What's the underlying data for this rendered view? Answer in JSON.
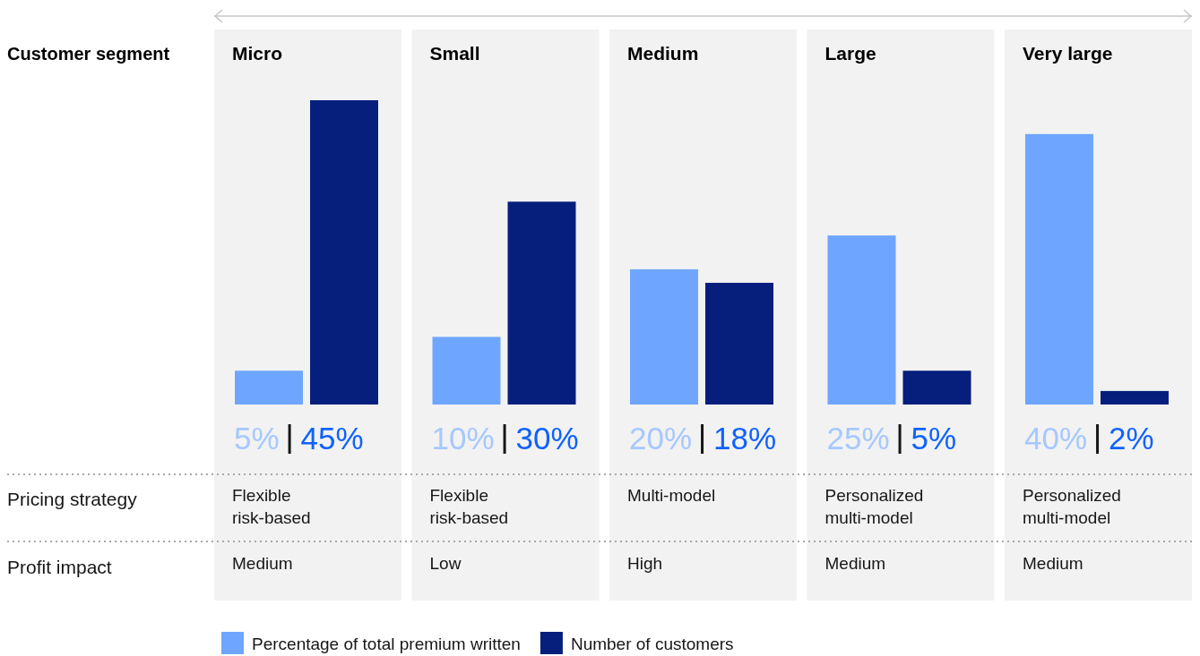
{
  "chart_data": {
    "type": "bar",
    "xlabel": "Customer segment",
    "categories": [
      "Micro",
      "Small",
      "Medium",
      "Large",
      "Very large"
    ],
    "series": [
      {
        "name": "Percentage of total premium written",
        "color": "#6ea6ff",
        "values": [
          5,
          10,
          20,
          25,
          40
        ],
        "value_labels": [
          "5%",
          "10%",
          "20%",
          "25%",
          "40%"
        ]
      },
      {
        "name": "Number of customers",
        "color": "#061f7d",
        "values": [
          45,
          30,
          18,
          5,
          2
        ],
        "value_labels": [
          "45%",
          "30%",
          "18%",
          "5%",
          "2%"
        ]
      }
    ],
    "legend": "bottom",
    "annotations": [
      "Pricing strategy",
      "Flexible\nrisk-based",
      "Flexible\nrisk-based",
      "Multi-model",
      "Personalized\nmulti-model",
      "Personalized\nmulti-model",
      "Profit impact",
      "Medium",
      "Low",
      "High",
      "Medium",
      "Medium"
    ]
  }
}
